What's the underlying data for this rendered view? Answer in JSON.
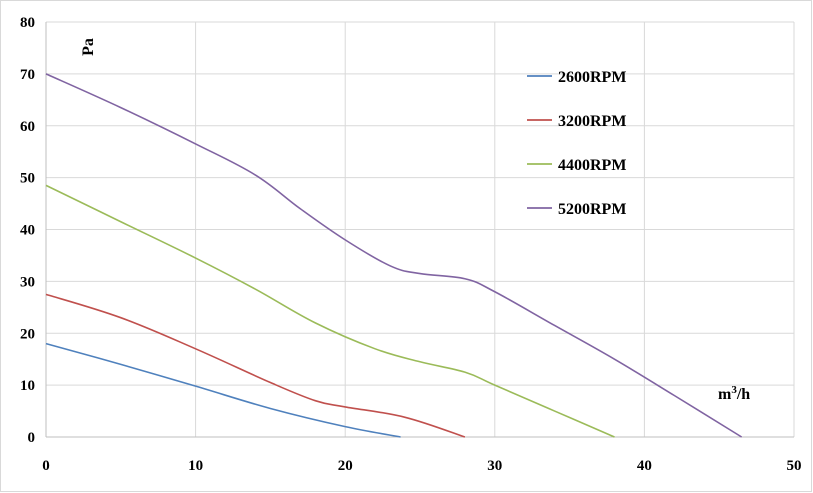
{
  "chart_data": {
    "type": "line",
    "xlabel": "m³/h",
    "ylabel": "Pa",
    "xlim": [
      0,
      50
    ],
    "ylim": [
      0,
      80
    ],
    "xticks": [
      0,
      10,
      20,
      30,
      40,
      50
    ],
    "yticks": [
      0,
      10,
      20,
      30,
      40,
      50,
      60,
      70,
      80
    ],
    "grid": true,
    "legend_position": "top-right",
    "series": [
      {
        "name": "2600RPM",
        "color": "#4f81bd",
        "points": [
          [
            0,
            18
          ],
          [
            5,
            14
          ],
          [
            10,
            9.8
          ],
          [
            15,
            5.5
          ],
          [
            20,
            2
          ],
          [
            23.7,
            0
          ]
        ]
      },
      {
        "name": "3200RPM",
        "color": "#c0504d",
        "points": [
          [
            0,
            27.5
          ],
          [
            5,
            23
          ],
          [
            10,
            17
          ],
          [
            15,
            10.5
          ],
          [
            18,
            7
          ],
          [
            20,
            5.8
          ],
          [
            24,
            3.8
          ],
          [
            28,
            0
          ]
        ]
      },
      {
        "name": "4400RPM",
        "color": "#9bbb59",
        "points": [
          [
            0,
            48.5
          ],
          [
            5,
            41.5
          ],
          [
            10,
            34.5
          ],
          [
            14,
            28.5
          ],
          [
            18,
            22
          ],
          [
            22,
            17
          ],
          [
            25,
            14.5
          ],
          [
            28,
            12.5
          ],
          [
            30,
            10
          ],
          [
            34,
            5
          ],
          [
            38,
            0
          ]
        ]
      },
      {
        "name": "5200RPM",
        "color": "#8064a2",
        "points": [
          [
            0,
            70
          ],
          [
            5,
            63.5
          ],
          [
            10,
            56.5
          ],
          [
            14,
            50.5
          ],
          [
            17,
            44
          ],
          [
            20,
            38
          ],
          [
            23,
            33
          ],
          [
            25,
            31.5
          ],
          [
            28,
            30.5
          ],
          [
            30,
            28
          ],
          [
            34,
            21.5
          ],
          [
            38,
            15
          ],
          [
            42,
            8
          ],
          [
            46.5,
            0
          ]
        ]
      }
    ]
  }
}
